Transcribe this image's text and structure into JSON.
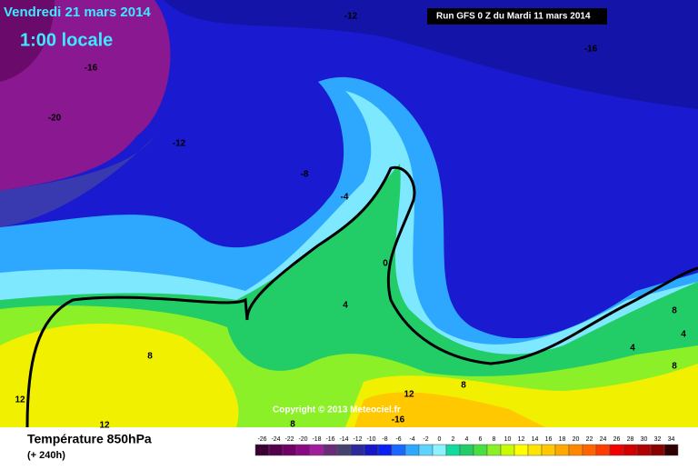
{
  "header": {
    "date": "Vendredi 21 mars 2014",
    "time": "1:00 locale",
    "run": "Run GFS 0 Z du Mardi 11 mars 2014"
  },
  "map": {
    "contour_labels": [
      -12,
      -16,
      -16,
      -20,
      -12,
      -8,
      -4,
      0,
      4,
      8,
      12,
      12,
      -16,
      12,
      8,
      8,
      8,
      4,
      4,
      8
    ],
    "copyright": "Copyright © 2013 Meteociel.fr"
  },
  "footer": {
    "variable": "Température 850hPa",
    "lead": "(+ 240h)"
  },
  "scale": {
    "values": [
      -26,
      -24,
      -22,
      -20,
      -18,
      -16,
      -14,
      -12,
      -10,
      -8,
      -6,
      -4,
      -2,
      0,
      2,
      4,
      6,
      8,
      10,
      12,
      14,
      16,
      18,
      20,
      22,
      24,
      26,
      28,
      30,
      32,
      34
    ],
    "colors": [
      "#3a0034",
      "#55004c",
      "#700066",
      "#8a0884",
      "#a01e9c",
      "#6a2c78",
      "#46426e",
      "#2a2a9a",
      "#1616c8",
      "#0a20f0",
      "#1868ff",
      "#2ea8ff",
      "#5cd4ff",
      "#8cf2ff",
      "#10dca0",
      "#22cc66",
      "#48e040",
      "#8cf028",
      "#c8fa00",
      "#ffff00",
      "#ffe400",
      "#ffc800",
      "#ffa800",
      "#ff8800",
      "#ff6400",
      "#ff3c00",
      "#f00000",
      "#d00000",
      "#b00000",
      "#880000",
      "#300000"
    ]
  }
}
